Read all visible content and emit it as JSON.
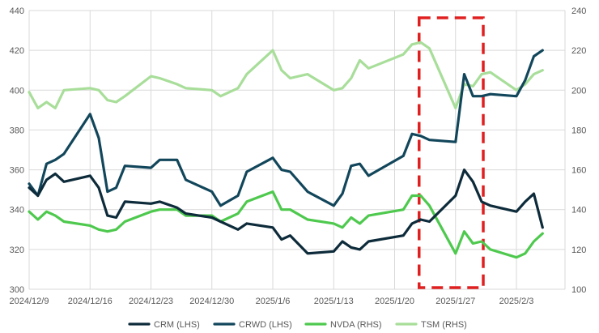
{
  "chart_data": {
    "type": "line",
    "x_ticks": [
      "2024/12/9",
      "2024/12/16",
      "2024/12/23",
      "2024/12/30",
      "2025/1/6",
      "2025/1/13",
      "2025/1/20",
      "2025/1/27",
      "2025/2/3"
    ],
    "y_left": {
      "min": 300,
      "max": 440,
      "ticks": [
        "300",
        "320",
        "340",
        "360",
        "380",
        "400",
        "420",
        "440"
      ]
    },
    "y_right": {
      "min": 100,
      "max": 240,
      "ticks": [
        "100",
        "120",
        "140",
        "160",
        "180",
        "200",
        "220",
        "240"
      ]
    },
    "highlight_box": {
      "x_start": "2025-01-23",
      "x_end": "2025-01-30",
      "color": "#e02020",
      "style": "dashed"
    },
    "series": [
      {
        "name": "CRM (LHS)",
        "axis": "left",
        "color": "#0d2b3a",
        "points": [
          [
            "2024-12-09",
            351
          ],
          [
            "2024-12-10",
            347
          ],
          [
            "2024-12-11",
            355
          ],
          [
            "2024-12-12",
            358
          ],
          [
            "2024-12-13",
            354
          ],
          [
            "2024-12-16",
            357
          ],
          [
            "2024-12-17",
            351
          ],
          [
            "2024-12-18",
            337
          ],
          [
            "2024-12-19",
            336
          ],
          [
            "2024-12-20",
            344
          ],
          [
            "2024-12-23",
            343
          ],
          [
            "2024-12-24",
            344
          ],
          [
            "2024-12-26",
            341
          ],
          [
            "2024-12-27",
            338
          ],
          [
            "2024-12-30",
            336
          ],
          [
            "2024-12-31",
            334
          ],
          [
            "2025-01-02",
            330
          ],
          [
            "2025-01-03",
            333
          ],
          [
            "2025-01-06",
            331
          ],
          [
            "2025-01-07",
            325
          ],
          [
            "2025-01-08",
            327
          ],
          [
            "2025-01-10",
            318
          ],
          [
            "2025-01-13",
            319
          ],
          [
            "2025-01-14",
            324
          ],
          [
            "2025-01-15",
            321
          ],
          [
            "2025-01-16",
            320
          ],
          [
            "2025-01-17",
            324
          ],
          [
            "2025-01-21",
            327
          ],
          [
            "2025-01-22",
            333
          ],
          [
            "2025-01-23",
            335
          ],
          [
            "2025-01-24",
            334
          ],
          [
            "2025-01-27",
            347
          ],
          [
            "2025-01-28",
            360
          ],
          [
            "2025-01-29",
            354
          ],
          [
            "2025-01-30",
            344
          ],
          [
            "2025-01-31",
            342
          ],
          [
            "2025-02-03",
            339
          ],
          [
            "2025-02-04",
            344
          ],
          [
            "2025-02-05",
            348
          ],
          [
            "2025-02-06",
            331
          ]
        ]
      },
      {
        "name": "CRWD (LHS)",
        "axis": "left",
        "color": "#12465b",
        "points": [
          [
            "2024-12-09",
            353
          ],
          [
            "2024-12-10",
            347
          ],
          [
            "2024-12-11",
            363
          ],
          [
            "2024-12-12",
            365
          ],
          [
            "2024-12-13",
            368
          ],
          [
            "2024-12-16",
            388
          ],
          [
            "2024-12-17",
            376
          ],
          [
            "2024-12-18",
            349
          ],
          [
            "2024-12-19",
            351
          ],
          [
            "2024-12-20",
            362
          ],
          [
            "2024-12-23",
            361
          ],
          [
            "2024-12-24",
            365
          ],
          [
            "2024-12-26",
            365
          ],
          [
            "2024-12-27",
            355
          ],
          [
            "2024-12-30",
            349
          ],
          [
            "2024-12-31",
            342
          ],
          [
            "2025-01-02",
            347
          ],
          [
            "2025-01-03",
            359
          ],
          [
            "2025-01-06",
            366
          ],
          [
            "2025-01-07",
            360
          ],
          [
            "2025-01-08",
            359
          ],
          [
            "2025-01-10",
            349
          ],
          [
            "2025-01-13",
            342
          ],
          [
            "2025-01-14",
            348
          ],
          [
            "2025-01-15",
            362
          ],
          [
            "2025-01-16",
            363
          ],
          [
            "2025-01-17",
            357
          ],
          [
            "2025-01-21",
            367
          ],
          [
            "2025-01-22",
            378
          ],
          [
            "2025-01-23",
            377
          ],
          [
            "2025-01-24",
            375
          ],
          [
            "2025-01-27",
            374
          ],
          [
            "2025-01-28",
            408
          ],
          [
            "2025-01-29",
            397
          ],
          [
            "2025-01-30",
            397
          ],
          [
            "2025-01-31",
            398
          ],
          [
            "2025-02-03",
            397
          ],
          [
            "2025-02-04",
            405
          ],
          [
            "2025-02-05",
            417
          ],
          [
            "2025-02-06",
            420
          ]
        ]
      },
      {
        "name": "NVDA (RHS)",
        "axis": "right",
        "color": "#4ec94e",
        "points": [
          [
            "2024-12-09",
            139
          ],
          [
            "2024-12-10",
            135
          ],
          [
            "2024-12-11",
            139
          ],
          [
            "2024-12-12",
            137
          ],
          [
            "2024-12-13",
            134
          ],
          [
            "2024-12-16",
            132
          ],
          [
            "2024-12-17",
            130
          ],
          [
            "2024-12-18",
            129
          ],
          [
            "2024-12-19",
            130
          ],
          [
            "2024-12-20",
            134
          ],
          [
            "2024-12-23",
            139
          ],
          [
            "2024-12-24",
            140
          ],
          [
            "2024-12-26",
            140
          ],
          [
            "2024-12-27",
            137
          ],
          [
            "2024-12-30",
            137
          ],
          [
            "2024-12-31",
            134
          ],
          [
            "2025-01-02",
            138
          ],
          [
            "2025-01-03",
            144
          ],
          [
            "2025-01-06",
            149
          ],
          [
            "2025-01-07",
            140
          ],
          [
            "2025-01-08",
            140
          ],
          [
            "2025-01-10",
            135
          ],
          [
            "2025-01-13",
            133
          ],
          [
            "2025-01-14",
            131
          ],
          [
            "2025-01-15",
            136
          ],
          [
            "2025-01-16",
            133
          ],
          [
            "2025-01-17",
            137
          ],
          [
            "2025-01-21",
            140
          ],
          [
            "2025-01-22",
            147
          ],
          [
            "2025-01-23",
            147
          ],
          [
            "2025-01-24",
            142
          ],
          [
            "2025-01-27",
            118
          ],
          [
            "2025-01-28",
            129
          ],
          [
            "2025-01-29",
            123
          ],
          [
            "2025-01-30",
            124
          ],
          [
            "2025-01-31",
            120
          ],
          [
            "2025-02-03",
            116
          ],
          [
            "2025-02-04",
            118
          ],
          [
            "2025-02-05",
            124
          ],
          [
            "2025-02-06",
            128
          ]
        ]
      },
      {
        "name": "TSM (RHS)",
        "axis": "right",
        "color": "#a8de9a",
        "points": [
          [
            "2024-12-09",
            199
          ],
          [
            "2024-12-10",
            191
          ],
          [
            "2024-12-11",
            194
          ],
          [
            "2024-12-12",
            191
          ],
          [
            "2024-12-13",
            200
          ],
          [
            "2024-12-16",
            201
          ],
          [
            "2024-12-17",
            200
          ],
          [
            "2024-12-18",
            195
          ],
          [
            "2024-12-19",
            194
          ],
          [
            "2024-12-20",
            197
          ],
          [
            "2024-12-23",
            207
          ],
          [
            "2024-12-24",
            206
          ],
          [
            "2024-12-26",
            203
          ],
          [
            "2024-12-27",
            201
          ],
          [
            "2024-12-30",
            200
          ],
          [
            "2024-12-31",
            197
          ],
          [
            "2025-01-02",
            201
          ],
          [
            "2025-01-03",
            208
          ],
          [
            "2025-01-06",
            220
          ],
          [
            "2025-01-07",
            210
          ],
          [
            "2025-01-08",
            206
          ],
          [
            "2025-01-10",
            208
          ],
          [
            "2025-01-13",
            200
          ],
          [
            "2025-01-14",
            201
          ],
          [
            "2025-01-15",
            206
          ],
          [
            "2025-01-16",
            215
          ],
          [
            "2025-01-17",
            211
          ],
          [
            "2025-01-21",
            218
          ],
          [
            "2025-01-22",
            223
          ],
          [
            "2025-01-23",
            224
          ],
          [
            "2025-01-24",
            221
          ],
          [
            "2025-01-27",
            191
          ],
          [
            "2025-01-28",
            203
          ],
          [
            "2025-01-29",
            202
          ],
          [
            "2025-01-30",
            208
          ],
          [
            "2025-01-31",
            209
          ],
          [
            "2025-02-03",
            200
          ],
          [
            "2025-02-04",
            203
          ],
          [
            "2025-02-05",
            208
          ],
          [
            "2025-02-06",
            210
          ]
        ]
      }
    ],
    "legend": {
      "position": "bottom"
    },
    "grid": {
      "horizontal": true,
      "vertical": true
    }
  }
}
